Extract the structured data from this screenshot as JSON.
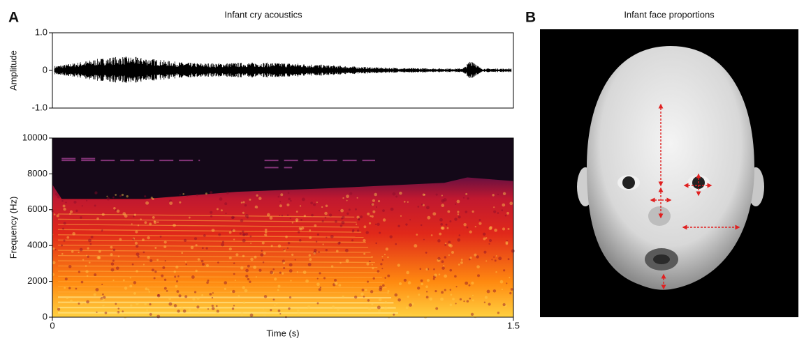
{
  "panels": [
    {
      "letter": "A",
      "title": "Infant cry acoustics"
    },
    {
      "letter": "B",
      "title": "Infant face proportions"
    }
  ],
  "chart_data": [
    {
      "type": "waveform",
      "ylabel": "Amplitude",
      "xlim": [
        0,
        1.5
      ],
      "ylim": [
        -1,
        1
      ],
      "yticks": [
        {
          "value": 1,
          "label": "1.0"
        },
        0,
        {
          "value": -1,
          "label": "-1.0"
        }
      ]
    },
    {
      "type": "spectrogram",
      "xlabel": "Time (s)",
      "ylabel": "Frequency (Hz)",
      "xlim": [
        0,
        1.5
      ],
      "ylim": [
        0,
        10000
      ],
      "xticks": [
        0,
        1.5
      ],
      "yticks": [
        0,
        2000,
        4000,
        6000,
        8000,
        10000
      ]
    }
  ]
}
